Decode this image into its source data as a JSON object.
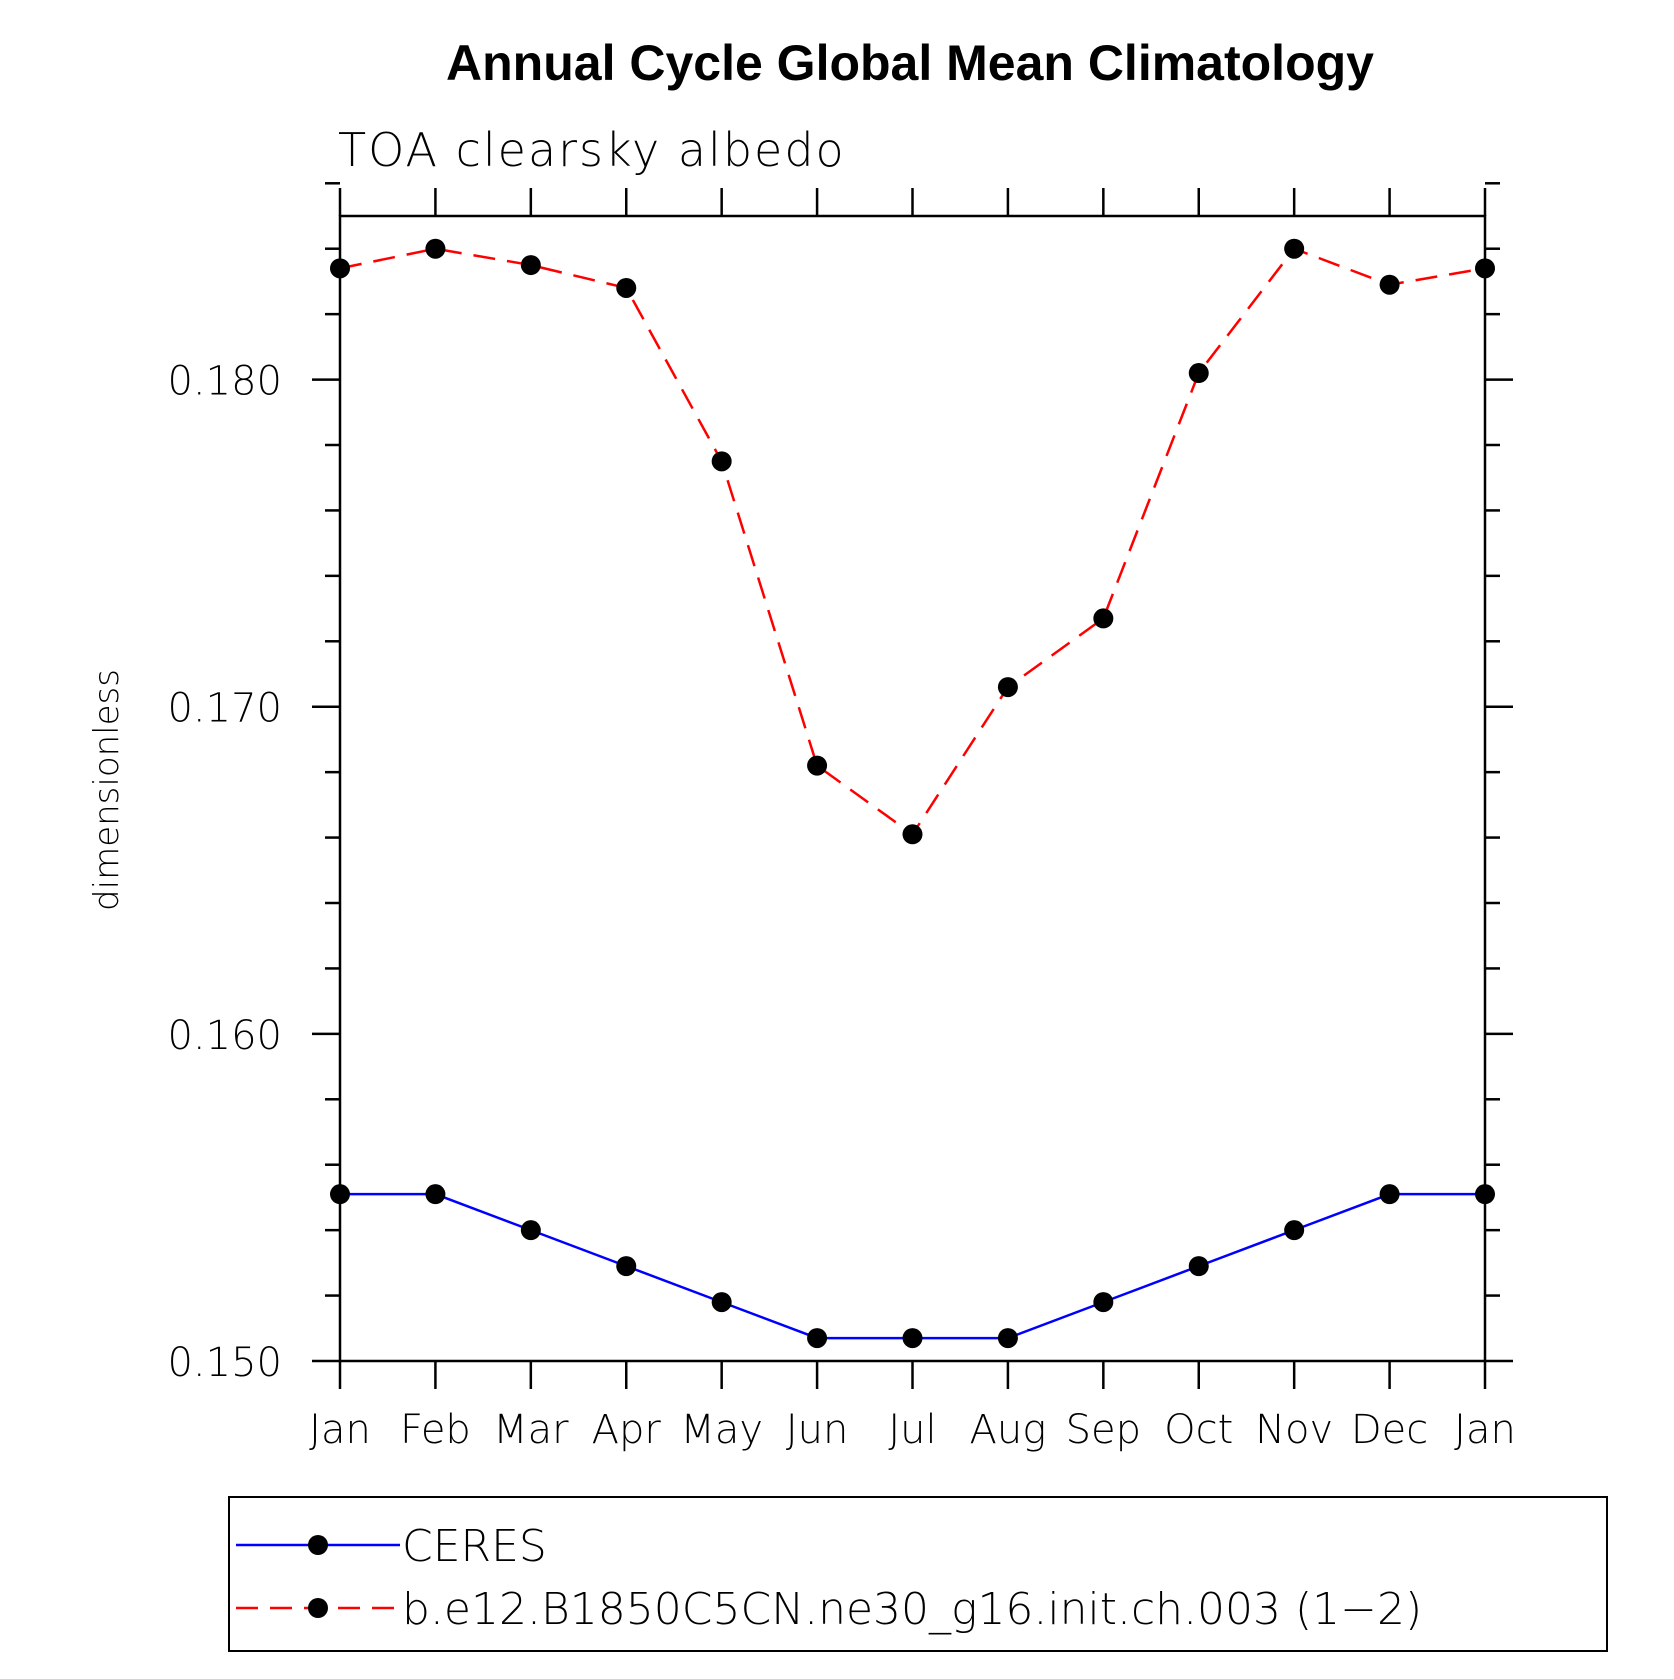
{
  "chart_data": {
    "type": "line",
    "title": "Annual Cycle Global Mean Climatology",
    "subtitle": "TOA clearsky albedo",
    "ylabel": "dimensionless",
    "xlabel": "",
    "categories": [
      "Jan",
      "Feb",
      "Mar",
      "Apr",
      "May",
      "Jun",
      "Jul",
      "Aug",
      "Sep",
      "Oct",
      "Nov",
      "Dec",
      "Jan"
    ],
    "ylim": [
      0.15,
      0.185
    ],
    "yticks": [
      0.15,
      0.16,
      0.17,
      0.18
    ],
    "ytick_labels": [
      "0.150",
      "0.160",
      "0.170",
      "0.180"
    ],
    "grid": false,
    "legend_position": "bottom",
    "series": [
      {
        "name": "CERES",
        "color": "#0000ff",
        "line_style": "solid",
        "marker": "filled-circle",
        "values": [
          0.1551,
          0.1551,
          0.154,
          0.1529,
          0.1518,
          0.1507,
          0.1507,
          0.1507,
          0.1518,
          0.1529,
          0.154,
          0.1551,
          0.1551
        ]
      },
      {
        "name": "b.e12.B1850C5CN.ne30_g16.init.ch.003 (1−2)",
        "color": "#ff0000",
        "line_style": "dashed",
        "marker": "filled-circle",
        "values": [
          0.1834,
          0.184,
          0.1835,
          0.1828,
          0.1775,
          0.1682,
          0.1661,
          0.1706,
          0.1727,
          0.1802,
          0.184,
          0.1829,
          0.1834
        ]
      }
    ]
  }
}
